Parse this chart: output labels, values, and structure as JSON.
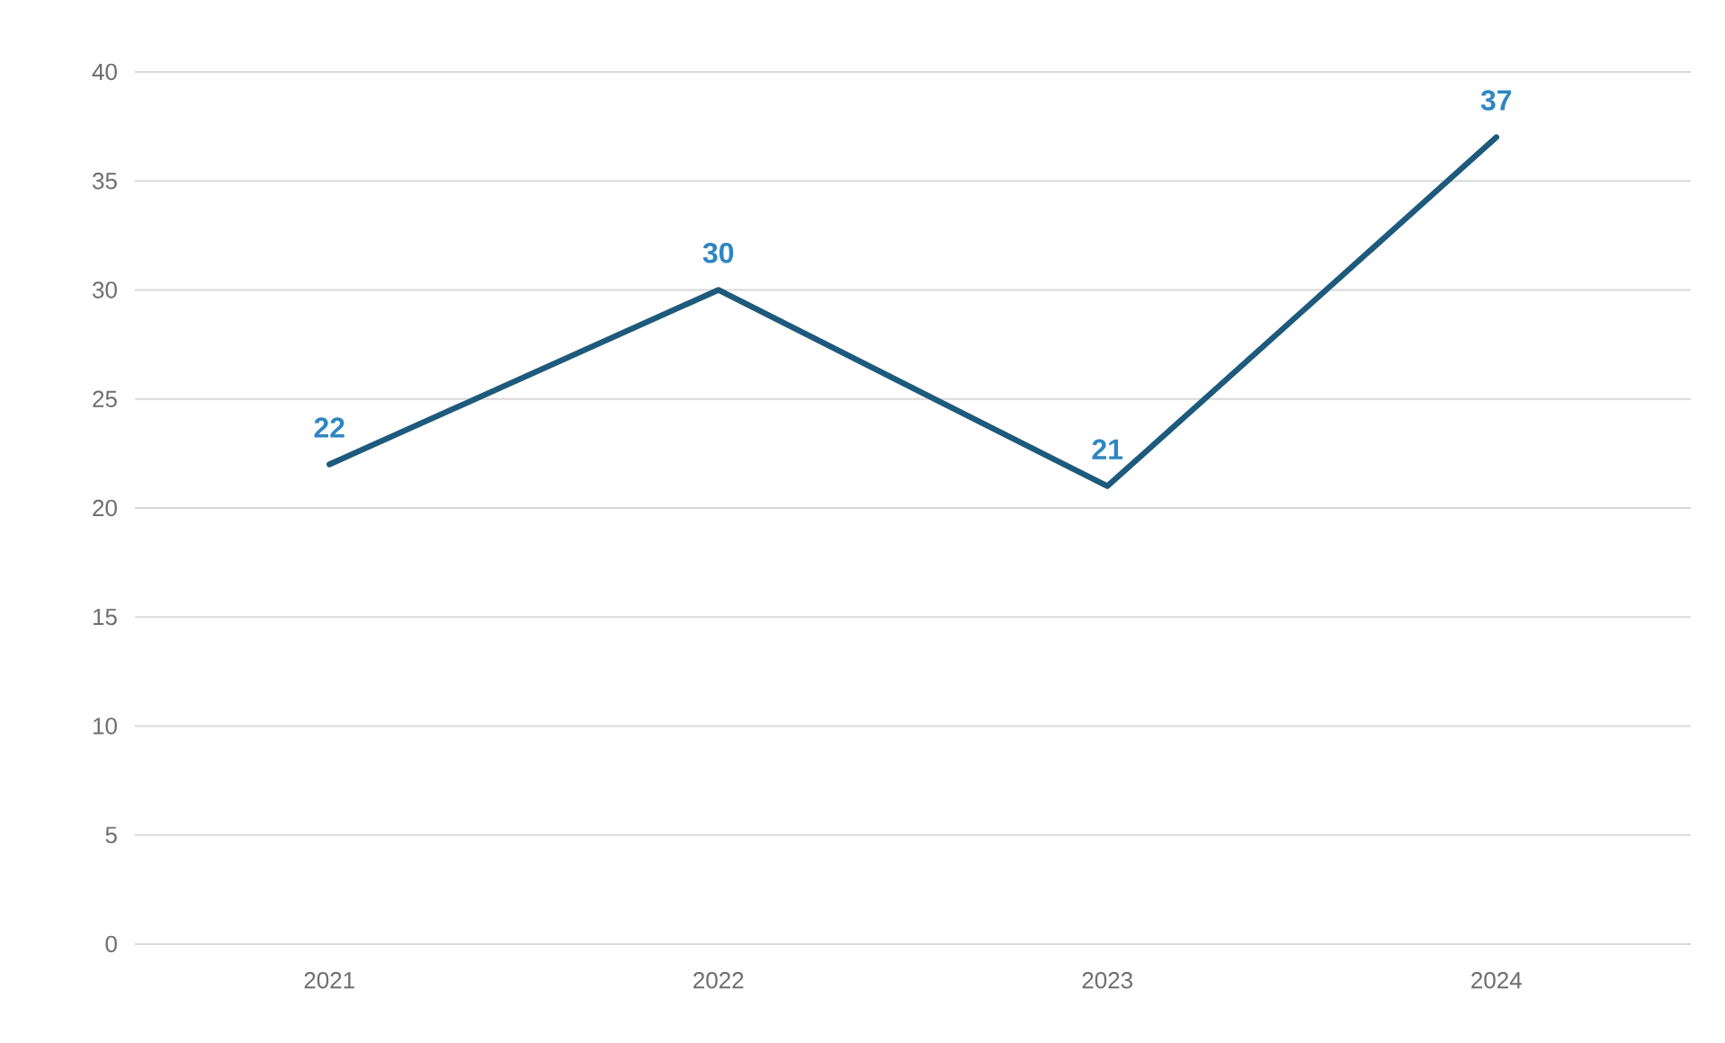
{
  "chart_data": {
    "type": "line",
    "categories": [
      "2021",
      "2022",
      "2023",
      "2024"
    ],
    "series": [
      {
        "color": "#1d5a7c",
        "values": [
          22,
          30,
          21,
          37
        ]
      }
    ],
    "ylim": [
      0,
      40
    ],
    "yticks": [
      0,
      5,
      10,
      15,
      20,
      25,
      30,
      35,
      40
    ],
    "grid": "y",
    "data_labels": true,
    "marker": "none",
    "line_style": "solid"
  }
}
